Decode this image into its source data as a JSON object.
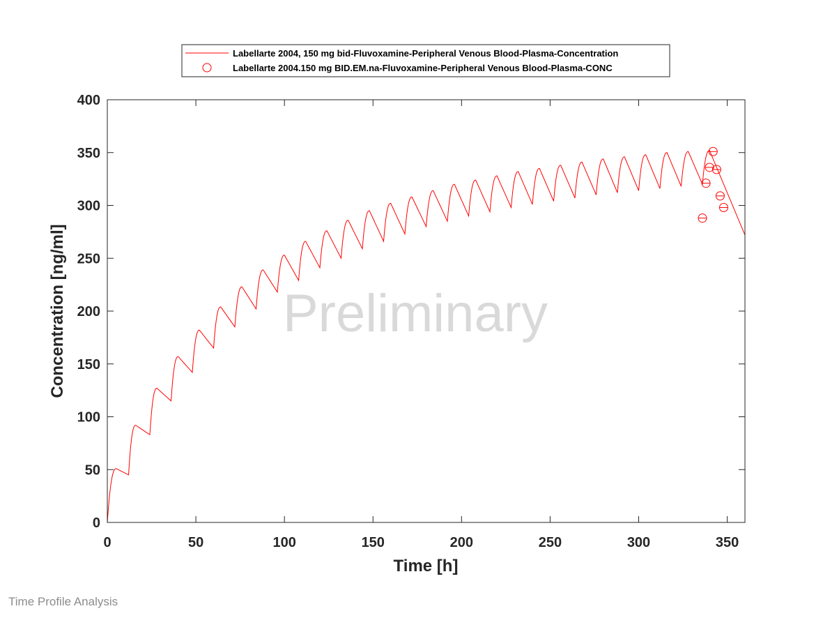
{
  "watermark": "Preliminary",
  "footer": "Time Profile Analysis",
  "chart_data": {
    "type": "line",
    "title": "",
    "xlabel": "Time [h]",
    "ylabel": "Concentration [ng/ml]",
    "xlim": [
      0,
      360
    ],
    "ylim": [
      0,
      400
    ],
    "xticks": [
      0,
      50,
      100,
      150,
      200,
      250,
      300,
      350
    ],
    "yticks": [
      0,
      50,
      100,
      150,
      200,
      250,
      300,
      350,
      400
    ],
    "grid": false,
    "legend_position": "top-center (outside plot area)",
    "colors": {
      "simulation": "#ff0000",
      "observed": "#ff0000",
      "axes": "#262626"
    },
    "series": [
      {
        "name": "Labellarte 2004, 150 mg bid-Fluvoxamine-Peripheral Venous Blood-Plasma-Concentration",
        "style": "line",
        "dosing_interval_h": 12,
        "x": [
          0,
          5,
          12,
          16,
          24,
          28,
          36,
          40,
          48,
          52,
          60,
          64,
          72,
          76,
          84,
          88,
          96,
          100,
          108,
          112,
          120,
          124,
          132,
          136,
          144,
          148,
          156,
          160,
          168,
          172,
          180,
          184,
          192,
          196,
          204,
          208,
          216,
          220,
          228,
          232,
          240,
          244,
          252,
          256,
          264,
          268,
          276,
          280,
          288,
          292,
          300,
          304,
          312,
          316,
          324,
          328,
          336,
          340,
          360
        ],
        "y": [
          0,
          51,
          45,
          92,
          83,
          127,
          115,
          157,
          142,
          182,
          165,
          204,
          185,
          223,
          202,
          239,
          218,
          253,
          229,
          266,
          241,
          276,
          250,
          286,
          259,
          295,
          266,
          302,
          273,
          308,
          280,
          314,
          285,
          320,
          290,
          324,
          294,
          328,
          298,
          332,
          301,
          335,
          304,
          338,
          307,
          341,
          310,
          344,
          312,
          346,
          314,
          348,
          316,
          350,
          318,
          351,
          320,
          352,
          272
        ]
      },
      {
        "name": "Labellarte 2004.150 mg BID.EM.na-Fluvoxamine-Peripheral Venous Blood-Plasma-CONC",
        "style": "open-circle",
        "x": [
          336,
          338,
          340,
          342,
          344,
          346,
          348
        ],
        "y": [
          288,
          321,
          336,
          351,
          334,
          309,
          298
        ]
      }
    ]
  }
}
